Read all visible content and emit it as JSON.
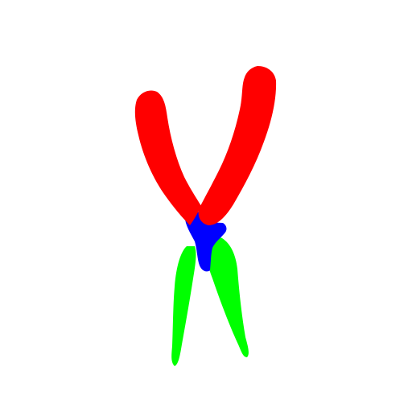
{
  "colors": {
    "background": "#ffffff",
    "handle": "#ff0000",
    "pivot": "#0000ff",
    "jaw": "#00ff00"
  },
  "icon": "pliers-segmentation-mask"
}
